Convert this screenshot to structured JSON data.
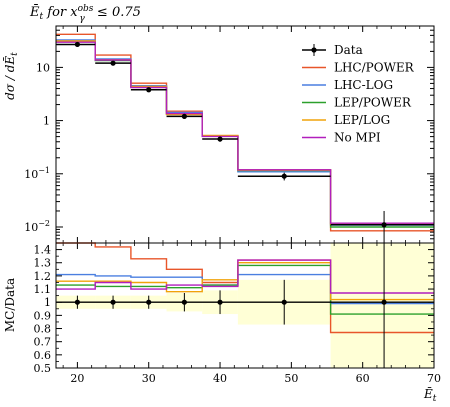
{
  "chart_data": {
    "type": "step",
    "title": "Ē_t for x_γ^obs ≤ 0.75",
    "title_parts": {
      "lhs": "Ē",
      "sub_t": "t",
      "mid": " for x",
      "sub": "γ",
      "sup": "obs",
      "rhs": " ≤ 0.75"
    },
    "xlabel_parts": {
      "main": "Ē",
      "sub": "t"
    },
    "ylabel": "dσ/dĒ_t",
    "ylabel_parts": {
      "pre": "dσ / dĒ",
      "sub": "t"
    },
    "ratio_ylabel": "MC/Data",
    "xlim": [
      17,
      70
    ],
    "x_ticks": [
      20,
      30,
      40,
      50,
      60,
      70
    ],
    "x_tick_labels": [
      "20",
      "30",
      "40",
      "50",
      "60",
      "70"
    ],
    "ylim_log": [
      0.005,
      60
    ],
    "y_major_ticks": [
      0.01,
      0.1,
      1,
      10
    ],
    "y_major_labels": [
      {
        "base": "10",
        "exp": "−2"
      },
      {
        "base": "10",
        "exp": "−1"
      },
      {
        "base": "1",
        "exp": ""
      },
      {
        "base": "10",
        "exp": ""
      }
    ],
    "ratio_ylim": [
      0.5,
      1.45
    ],
    "ratio_ticks": [
      0.5,
      0.6,
      0.7,
      0.8,
      0.9,
      1.0,
      1.1,
      1.2,
      1.3,
      1.4
    ],
    "ratio_tick_labels": [
      "0.5",
      "0.6",
      "0.7",
      "0.8",
      "0.9",
      "1",
      "1.1",
      "1.2",
      "1.3",
      "1.4"
    ],
    "bins": [
      17,
      22.5,
      27.5,
      32.5,
      37.5,
      42.5,
      55.5,
      70
    ],
    "data": {
      "name": "Data",
      "color": "#000000",
      "x": [
        20,
        25,
        30,
        35,
        40,
        49,
        63
      ],
      "y": [
        27,
        12,
        3.8,
        1.2,
        0.45,
        0.09,
        0.011
      ],
      "yerr": [
        2,
        0.8,
        0.3,
        0.1,
        0.05,
        0.015,
        0.009
      ],
      "ratio_err": [
        0.05,
        0.05,
        0.05,
        0.07,
        0.09,
        0.17,
        0.8
      ]
    },
    "series": [
      {
        "name": "LHC/POWER",
        "color": "#e8562a",
        "ratio": [
          1.55,
          1.42,
          1.33,
          1.25,
          1.15,
          1.32,
          0.77
        ]
      },
      {
        "name": "LHC-LOG",
        "color": "#4a7fe0",
        "ratio": [
          1.21,
          1.2,
          1.19,
          1.19,
          1.13,
          1.21,
          0.99
        ]
      },
      {
        "name": "LEP/POWER",
        "color": "#2ca02c",
        "ratio": [
          1.13,
          1.12,
          1.12,
          1.11,
          1.13,
          1.28,
          0.91
        ]
      },
      {
        "name": "LEP/LOG",
        "color": "#f0a30a",
        "ratio": [
          1.16,
          1.16,
          1.15,
          1.08,
          1.17,
          1.3,
          1.02
        ]
      },
      {
        "name": "No MPI",
        "color": "#b11fbd",
        "ratio": [
          1.1,
          1.15,
          1.1,
          1.13,
          1.12,
          1.32,
          1.07
        ]
      }
    ]
  }
}
